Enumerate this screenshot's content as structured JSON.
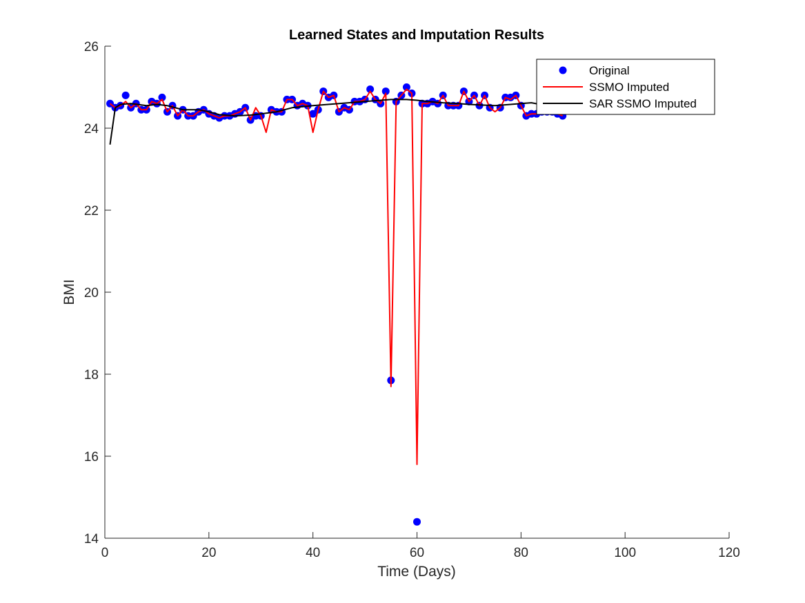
{
  "chart_data": {
    "type": "line",
    "title": "Learned States and Imputation Results",
    "xlabel": "Time (Days)",
    "ylabel": "BMI",
    "xlim": [
      0,
      120
    ],
    "ylim": [
      14,
      26
    ],
    "x_ticks": [
      0,
      20,
      40,
      60,
      80,
      100,
      120
    ],
    "y_ticks": [
      14,
      16,
      18,
      20,
      22,
      24,
      26
    ],
    "x_tick_labels": [
      "0",
      "20",
      "40",
      "60",
      "80",
      "100",
      "120"
    ],
    "y_tick_labels": [
      "14",
      "16",
      "18",
      "20",
      "22",
      "24",
      "26"
    ],
    "grid": false,
    "legend_position": "top-right",
    "series": [
      {
        "name": "Original",
        "style": "markers",
        "color": "#0000ff",
        "x": [
          1,
          2,
          3,
          4,
          5,
          6,
          7,
          8,
          9,
          10,
          11,
          12,
          13,
          14,
          15,
          16,
          17,
          18,
          19,
          20,
          21,
          22,
          23,
          24,
          25,
          26,
          27,
          28,
          29,
          30,
          32,
          33,
          34,
          35,
          36,
          37,
          38,
          39,
          40,
          41,
          42,
          43,
          44,
          45,
          46,
          47,
          48,
          49,
          50,
          51,
          52,
          53,
          54,
          55,
          56,
          57,
          58,
          59,
          60,
          61,
          62,
          63,
          64,
          65,
          66,
          67,
          68,
          69,
          70,
          71,
          72,
          73,
          74,
          76,
          77,
          78,
          79,
          80,
          81,
          82,
          83,
          84,
          85,
          86,
          87,
          88
        ],
        "y": [
          24.6,
          24.5,
          24.55,
          24.8,
          24.5,
          24.6,
          24.45,
          24.45,
          24.65,
          24.6,
          24.75,
          24.4,
          24.55,
          24.3,
          24.45,
          24.3,
          24.3,
          24.4,
          24.45,
          24.35,
          24.3,
          24.25,
          24.3,
          24.3,
          24.35,
          24.4,
          24.5,
          24.2,
          24.3,
          24.3,
          24.45,
          24.4,
          24.4,
          24.7,
          24.7,
          24.55,
          24.6,
          24.55,
          24.35,
          24.45,
          24.9,
          24.75,
          24.8,
          24.4,
          24.5,
          24.45,
          24.65,
          24.65,
          24.7,
          24.95,
          24.7,
          24.6,
          24.9,
          17.85,
          24.65,
          24.8,
          25.0,
          24.85,
          14.4,
          24.6,
          24.6,
          24.65,
          24.6,
          24.8,
          24.55,
          24.55,
          24.55,
          24.9,
          24.65,
          24.8,
          24.55,
          24.8,
          24.5,
          24.5,
          24.75,
          24.75,
          24.8,
          24.55,
          24.3,
          24.35,
          24.35,
          24.4,
          24.4,
          24.4,
          24.35,
          24.3
        ]
      },
      {
        "name": "SSMO Imputed",
        "style": "line",
        "color": "#ff0000",
        "x": [
          1,
          2,
          3,
          4,
          5,
          6,
          7,
          8,
          9,
          10,
          11,
          12,
          13,
          14,
          15,
          16,
          17,
          18,
          19,
          20,
          21,
          22,
          23,
          24,
          25,
          26,
          27,
          28,
          29,
          30,
          31,
          32,
          33,
          34,
          35,
          36,
          37,
          38,
          39,
          40,
          41,
          42,
          43,
          44,
          45,
          46,
          47,
          48,
          49,
          50,
          51,
          52,
          53,
          54,
          55,
          56,
          57,
          58,
          59,
          60,
          61,
          62,
          63,
          64,
          65,
          66,
          67,
          68,
          69,
          70,
          71,
          72,
          73,
          74,
          75,
          76,
          77,
          78,
          79,
          80,
          81,
          82,
          83,
          84,
          85,
          86,
          87,
          88
        ],
        "y": [
          24.6,
          24.5,
          24.55,
          24.65,
          24.5,
          24.6,
          24.45,
          24.45,
          24.65,
          24.6,
          24.7,
          24.4,
          24.55,
          24.3,
          24.45,
          24.3,
          24.3,
          24.4,
          24.45,
          24.35,
          24.3,
          24.25,
          24.3,
          24.3,
          24.35,
          24.4,
          24.5,
          24.2,
          24.5,
          24.3,
          23.9,
          24.45,
          24.4,
          24.4,
          24.7,
          24.7,
          24.55,
          24.6,
          24.55,
          23.9,
          24.45,
          24.9,
          24.75,
          24.8,
          24.4,
          24.5,
          24.45,
          24.65,
          24.65,
          24.7,
          24.9,
          24.7,
          24.6,
          24.85,
          17.7,
          24.65,
          24.8,
          24.95,
          24.85,
          15.8,
          24.6,
          24.6,
          24.65,
          24.6,
          24.8,
          24.55,
          24.55,
          24.55,
          24.9,
          24.65,
          24.8,
          24.55,
          24.8,
          24.5,
          24.4,
          24.5,
          24.75,
          24.7,
          24.8,
          24.55,
          24.3,
          24.35,
          24.35,
          24.4,
          24.4,
          24.4,
          24.35,
          24.3
        ]
      },
      {
        "name": "SAR SSMO Imputed",
        "style": "line",
        "color": "#000000",
        "x": [
          1,
          2,
          3,
          5,
          8,
          10,
          12,
          15,
          18,
          20,
          22,
          25,
          28,
          30,
          33,
          36,
          40,
          45,
          50,
          55,
          58,
          60,
          62,
          65,
          68,
          70,
          75,
          78,
          80,
          82,
          85,
          88
        ],
        "y": [
          23.6,
          24.5,
          24.58,
          24.6,
          24.55,
          24.58,
          24.55,
          24.45,
          24.45,
          24.4,
          24.33,
          24.3,
          24.32,
          24.35,
          24.4,
          24.5,
          24.55,
          24.6,
          24.65,
          24.7,
          24.7,
          24.68,
          24.65,
          24.62,
          24.6,
          24.58,
          24.55,
          24.58,
          24.6,
          24.62,
          24.55,
          24.5
        ]
      }
    ]
  },
  "colors": {
    "axis": "#262626",
    "background": "#ffffff"
  }
}
